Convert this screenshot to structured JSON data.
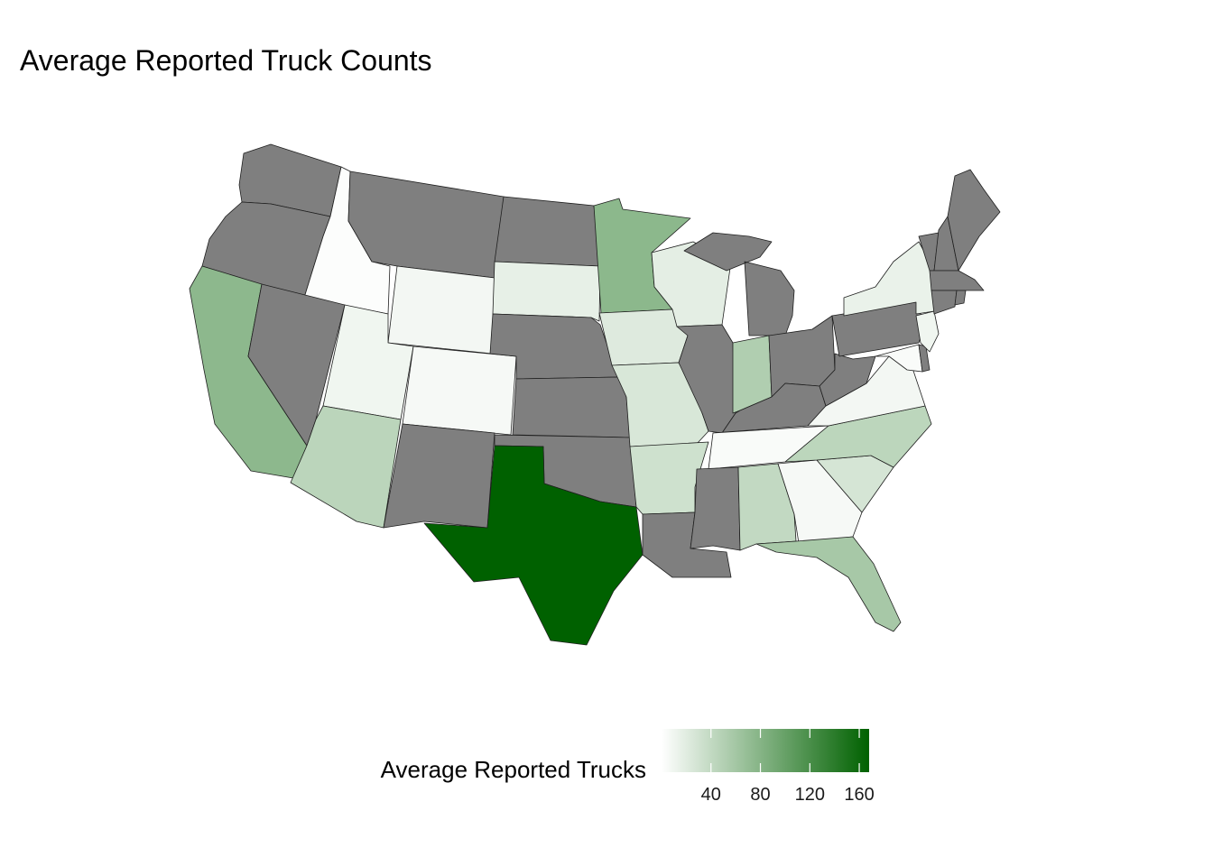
{
  "title": "Average Reported Truck Counts",
  "legend": {
    "title": "Average Reported Trucks",
    "min": 0,
    "max": 168,
    "ticks": [
      "40",
      "80",
      "120",
      "160"
    ],
    "low_color": "#ffffff",
    "high_color": "#006100",
    "na_color": "#7f7f7f"
  },
  "chart_data": {
    "type": "choropleth",
    "region": "Contiguous United States",
    "value_label": "Average Reported Trucks",
    "states": [
      {
        "name": "Washington",
        "value": null
      },
      {
        "name": "Oregon",
        "value": null
      },
      {
        "name": "California",
        "value": 75
      },
      {
        "name": "Idaho",
        "value": 2
      },
      {
        "name": "Nevada",
        "value": null
      },
      {
        "name": "Montana",
        "value": null
      },
      {
        "name": "Wyoming",
        "value": 8
      },
      {
        "name": "Utah",
        "value": 10
      },
      {
        "name": "Arizona",
        "value": 45
      },
      {
        "name": "Colorado",
        "value": 6
      },
      {
        "name": "New Mexico",
        "value": null
      },
      {
        "name": "North Dakota",
        "value": null
      },
      {
        "name": "South Dakota",
        "value": 16
      },
      {
        "name": "Nebraska",
        "value": null
      },
      {
        "name": "Kansas",
        "value": null
      },
      {
        "name": "Oklahoma",
        "value": null
      },
      {
        "name": "Texas",
        "value": 168
      },
      {
        "name": "Minnesota",
        "value": 76
      },
      {
        "name": "Iowa",
        "value": 22
      },
      {
        "name": "Missouri",
        "value": 26
      },
      {
        "name": "Arkansas",
        "value": 32
      },
      {
        "name": "Louisiana",
        "value": null
      },
      {
        "name": "Wisconsin",
        "value": 18
      },
      {
        "name": "Illinois",
        "value": null
      },
      {
        "name": "Michigan",
        "value": null
      },
      {
        "name": "Indiana",
        "value": 52
      },
      {
        "name": "Ohio",
        "value": null
      },
      {
        "name": "Kentucky",
        "value": null
      },
      {
        "name": "Tennessee",
        "value": 4
      },
      {
        "name": "Mississippi",
        "value": null
      },
      {
        "name": "Alabama",
        "value": 40
      },
      {
        "name": "Georgia",
        "value": 6
      },
      {
        "name": "Florida",
        "value": 58
      },
      {
        "name": "South Carolina",
        "value": 28
      },
      {
        "name": "North Carolina",
        "value": 44
      },
      {
        "name": "Virginia",
        "value": 8
      },
      {
        "name": "West Virginia",
        "value": null
      },
      {
        "name": "Pennsylvania",
        "value": null
      },
      {
        "name": "New York",
        "value": 14
      },
      {
        "name": "Maine",
        "value": null
      },
      {
        "name": "New Hampshire",
        "value": null
      },
      {
        "name": "Vermont",
        "value": null
      },
      {
        "name": "Massachusetts",
        "value": null
      },
      {
        "name": "Connecticut",
        "value": null
      },
      {
        "name": "Rhode Island",
        "value": null
      },
      {
        "name": "New Jersey",
        "value": 10
      },
      {
        "name": "Delaware",
        "value": null
      },
      {
        "name": "Maryland",
        "value": 4
      }
    ]
  }
}
